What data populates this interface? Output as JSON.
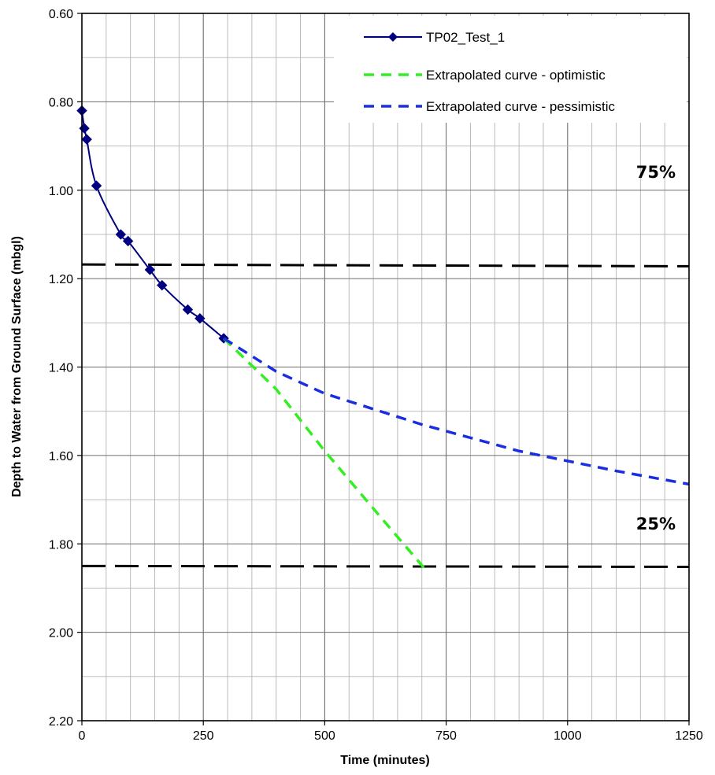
{
  "chart_data": {
    "type": "line",
    "xlabel": "Time (minutes)",
    "ylabel": "Depth to Water from Ground Surface (mbgl)",
    "xlim": [
      0,
      1250
    ],
    "ylim": [
      0.6,
      2.2
    ],
    "y_inverted": true,
    "grid": true,
    "legend_position": "top-right",
    "x_ticks": [
      "0",
      "250",
      "500",
      "750",
      "1000",
      "1250"
    ],
    "y_ticks": [
      "0.60",
      "0.80",
      "1.00",
      "1.20",
      "1.40",
      "1.60",
      "1.80",
      "2.00",
      "2.20"
    ],
    "series": [
      {
        "name": "TP02_Test_1",
        "style": "solid-markers",
        "color": "#000080",
        "x": [
          0,
          5,
          10,
          30,
          80,
          95,
          140,
          165,
          218,
          243,
          292
        ],
        "y": [
          0.82,
          0.86,
          0.885,
          0.99,
          1.1,
          1.115,
          1.18,
          1.215,
          1.27,
          1.29,
          1.335
        ]
      },
      {
        "name": "Extrapolated curve - optimistic",
        "style": "dashed",
        "color": "#33ee22",
        "x": [
          292,
          400,
          500,
          600,
          705
        ],
        "y": [
          1.335,
          1.45,
          1.59,
          1.72,
          1.855
        ]
      },
      {
        "name": "Extrapolated curve - pessimistic",
        "style": "dashed",
        "color": "#1a2ee0",
        "x": [
          292,
          400,
          500,
          700,
          900,
          1100,
          1250
        ],
        "y": [
          1.335,
          1.41,
          1.46,
          1.53,
          1.59,
          1.635,
          1.665
        ]
      }
    ],
    "reference_lines": [
      {
        "label": "75%",
        "x": [
          0,
          1250
        ],
        "y": [
          1.168,
          1.172
        ],
        "color": "#000000"
      },
      {
        "label": "25%",
        "x": [
          0,
          1250
        ],
        "y": [
          1.85,
          1.852
        ],
        "color": "#000000"
      }
    ]
  }
}
